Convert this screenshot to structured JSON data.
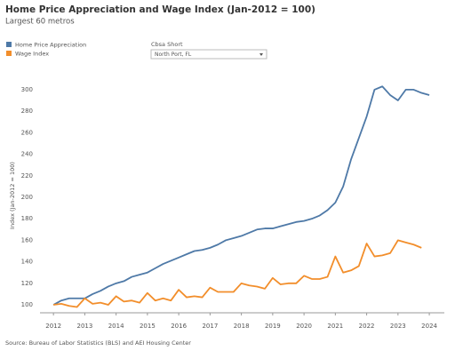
{
  "chart_data": {
    "type": "line",
    "title": "Home Price Appreciation and Wage Index (Jan-2012 = 100)",
    "subtitle": "Largest 60 metros",
    "filter": {
      "label": "Cbsa Short",
      "value": "North Port, FL"
    },
    "y_label": "Index (Jan-2012 = 100)",
    "source": "Source: Bureau of Labor Statistics (BLS) and AEI Housing Center",
    "x": [
      2012.0,
      2012.25,
      2012.5,
      2012.75,
      2013.0,
      2013.25,
      2013.5,
      2013.75,
      2014.0,
      2014.25,
      2014.5,
      2014.75,
      2015.0,
      2015.25,
      2015.5,
      2015.75,
      2016.0,
      2016.25,
      2016.5,
      2016.75,
      2017.0,
      2017.25,
      2017.5,
      2017.75,
      2018.0,
      2018.25,
      2018.5,
      2018.75,
      2019.0,
      2019.25,
      2019.5,
      2019.75,
      2020.0,
      2020.25,
      2020.5,
      2020.75,
      2021.0,
      2021.25,
      2021.5,
      2021.75,
      2022.0,
      2022.25,
      2022.5,
      2022.75,
      2023.0,
      2023.25,
      2023.5,
      2023.75,
      2024.0
    ],
    "series": [
      {
        "name": "Home Price Appreciation",
        "color": "#4e79a7",
        "values": [
          100,
          104,
          106,
          106,
          106,
          110,
          113,
          117,
          120,
          122,
          126,
          128,
          130,
          134,
          138,
          141,
          144,
          147,
          150,
          151,
          153,
          156,
          160,
          162,
          164,
          167,
          170,
          171,
          171,
          173,
          175,
          177,
          178,
          180,
          183,
          188,
          195,
          210,
          235,
          255,
          275,
          300,
          303,
          295,
          290,
          300,
          300,
          297,
          295
        ]
      },
      {
        "name": "Wage Index",
        "color": "#f28e2b",
        "values": [
          100,
          101,
          99,
          98,
          106,
          101,
          102,
          100,
          108,
          103,
          104,
          102,
          111,
          104,
          106,
          104,
          114,
          107,
          108,
          107,
          116,
          112,
          112,
          112,
          120,
          118,
          117,
          115,
          125,
          119,
          120,
          120,
          127,
          124,
          124,
          126,
          145,
          130,
          132,
          136,
          157,
          145,
          146,
          148,
          160,
          158,
          156,
          153,
          null
        ]
      }
    ],
    "xlim": [
      2011.57,
      2024.48
    ],
    "xticks": [
      2012,
      2013,
      2014,
      2015,
      2016,
      2017,
      2018,
      2019,
      2020,
      2021,
      2022,
      2023,
      2024
    ],
    "ylim": [
      92.6,
      309
    ],
    "yticks": [
      100,
      120,
      140,
      160,
      180,
      200,
      220,
      240,
      260,
      280,
      300
    ],
    "grid": false
  }
}
